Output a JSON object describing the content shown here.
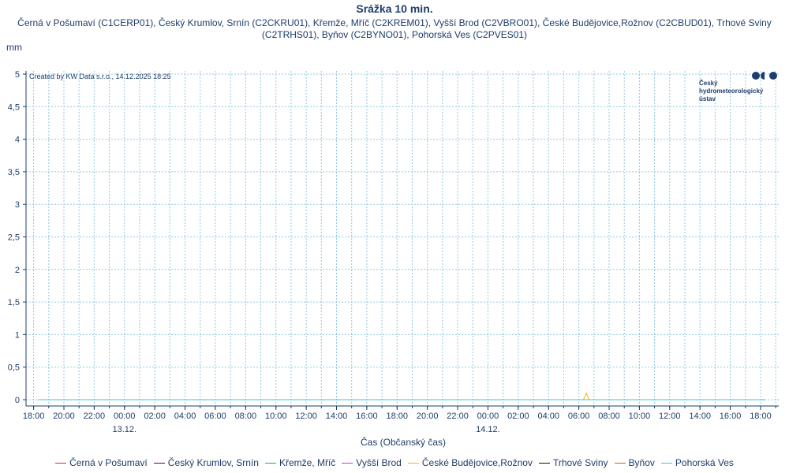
{
  "chart_data": {
    "type": "line",
    "title": "Srážka 10 min.",
    "subtitle": "Černá v Pošumaví (C1CERP01), Český Krumlov, Srnín (C2CKRU01), Křemže, Mříč (C2KREM01), Vyšší Brod (C2VBRO01), České Budějovice,Rožnov (C2CBUD01), Trhové Sviny (C2TRHS01), Byňov (C2BYNO01), Pohorská Ves (C2PVES01)",
    "ylabel": "mm",
    "xlabel": "Čas (Občanský čas)",
    "credit": "Created by KW Data s.r.o., 14.12.2025 18:25",
    "logo_text": [
      "Český",
      "hydrometeorologický",
      "ústav"
    ],
    "ylim": [
      0,
      5
    ],
    "y_ticks": [
      "0",
      "0,5",
      "1",
      "1,5",
      "2",
      "2,5",
      "3",
      "3,5",
      "4",
      "4,5",
      "5"
    ],
    "x_range_hours": [
      -6.5,
      43.2
    ],
    "x_ticks": [
      {
        "h": -6,
        "label": "18:00"
      },
      {
        "h": -4,
        "label": "20:00"
      },
      {
        "h": -2,
        "label": "22:00"
      },
      {
        "h": 0,
        "label": "00:00"
      },
      {
        "h": 2,
        "label": "02:00"
      },
      {
        "h": 4,
        "label": "04:00"
      },
      {
        "h": 6,
        "label": "06:00"
      },
      {
        "h": 8,
        "label": "08:00"
      },
      {
        "h": 10,
        "label": "10:00"
      },
      {
        "h": 12,
        "label": "12:00"
      },
      {
        "h": 14,
        "label": "14:00"
      },
      {
        "h": 16,
        "label": "16:00"
      },
      {
        "h": 18,
        "label": "18:00"
      },
      {
        "h": 20,
        "label": "20:00"
      },
      {
        "h": 22,
        "label": "22:00"
      },
      {
        "h": 24,
        "label": "00:00"
      },
      {
        "h": 26,
        "label": "02:00"
      },
      {
        "h": 28,
        "label": "04:00"
      },
      {
        "h": 30,
        "label": "06:00"
      },
      {
        "h": 32,
        "label": "08:00"
      },
      {
        "h": 34,
        "label": "10:00"
      },
      {
        "h": 36,
        "label": "12:00"
      },
      {
        "h": 38,
        "label": "14:00"
      },
      {
        "h": 40,
        "label": "16:00"
      },
      {
        "h": 42,
        "label": "18:00"
      }
    ],
    "date_labels": [
      {
        "h": 0,
        "label": "13.12."
      },
      {
        "h": 24,
        "label": "14.12."
      }
    ],
    "grid": true,
    "legend_position": "bottom",
    "series": [
      {
        "name": "Černá v Pošumaví",
        "color": "#c0392b",
        "x": [
          -5.7,
          42.3
        ],
        "values": [
          0,
          0
        ]
      },
      {
        "name": "Český Krumlov, Srnín",
        "color": "#4a0f3a",
        "x": [
          -5.7,
          42.3
        ],
        "values": [
          0,
          0
        ]
      },
      {
        "name": "Křemže, Mříč",
        "color": "#2aa36b",
        "x": [
          -5.7,
          42.3
        ],
        "values": [
          0,
          0
        ]
      },
      {
        "name": "Vyšší Brod",
        "color": "#c93ad6",
        "x": [
          -5.7,
          42.3
        ],
        "values": [
          0,
          0
        ]
      },
      {
        "name": "České Budějovice,Rožnov",
        "color": "#f2b21b",
        "x": [
          -5.7,
          30.3,
          30.5,
          30.67,
          42.3
        ],
        "values": [
          0,
          0,
          0.1,
          0,
          0
        ]
      },
      {
        "name": "Trhové Sviny",
        "color": "#111111",
        "x": [
          -5.7,
          42.3
        ],
        "values": [
          0,
          0
        ]
      },
      {
        "name": "Byňov",
        "color": "#b8661a",
        "x": [
          -5.7,
          42.3
        ],
        "values": [
          0,
          0
        ]
      },
      {
        "name": "Pohorská Ves",
        "color": "#36c9d6",
        "x": [
          -5.7,
          42.3
        ],
        "values": [
          0,
          0
        ]
      }
    ]
  }
}
